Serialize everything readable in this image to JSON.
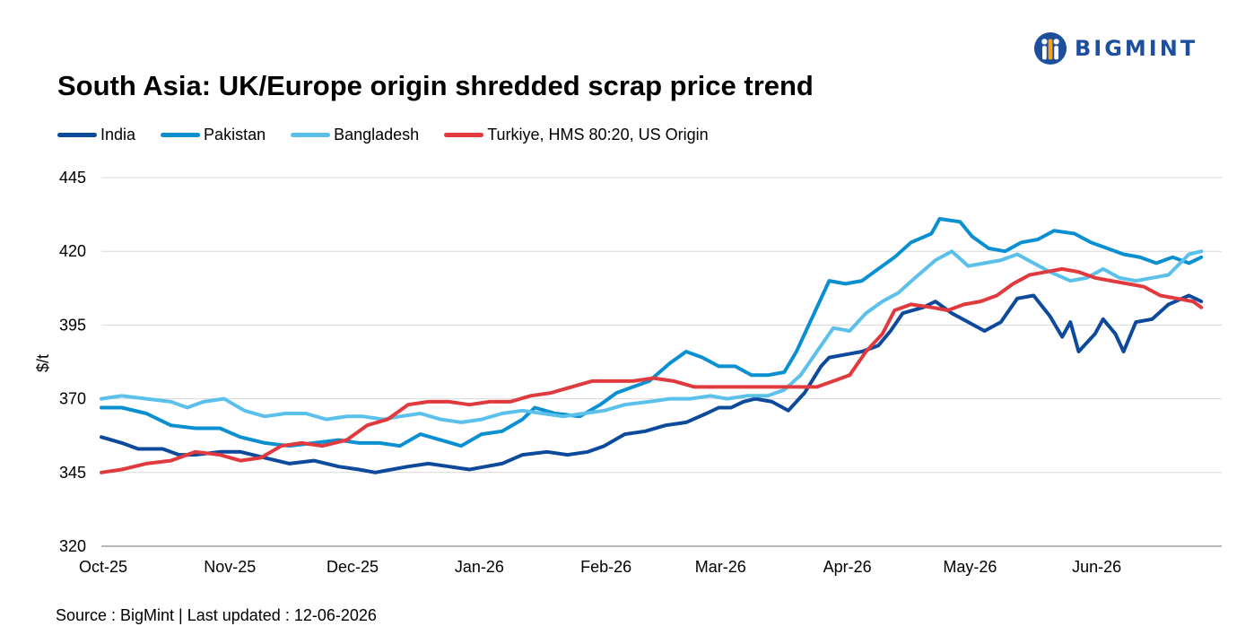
{
  "brand": {
    "name": "BIGMINT",
    "color": "#1e4f9e"
  },
  "footer": {
    "source": "Source : BigMint | Last updated : 12-06-2026"
  },
  "chart_data": {
    "type": "line",
    "title": "South Asia: UK/Europe origin shredded scrap price trend",
    "xlabel": "",
    "ylabel": "$/t",
    "ylim": [
      320,
      445
    ],
    "yticks": [
      "445",
      "420",
      "395",
      "370",
      "345",
      "320"
    ],
    "xticks": [
      "Oct-25",
      "Nov-25",
      "Dec-25",
      "Jan-26",
      "Feb-26",
      "Mar-26",
      "Apr-26",
      "May-26",
      "Jun-26"
    ],
    "grid": "horizontal",
    "legend_position": "top-left",
    "series": [
      {
        "name": "India",
        "color": "#0d4a9b",
        "points": [
          [
            "2025-10-01",
            357
          ],
          [
            "2025-10-06",
            355
          ],
          [
            "2025-10-10",
            353
          ],
          [
            "2025-10-16",
            353
          ],
          [
            "2025-10-20",
            351
          ],
          [
            "2025-10-24",
            351
          ],
          [
            "2025-10-30",
            352
          ],
          [
            "2025-11-04",
            352
          ],
          [
            "2025-11-10",
            350
          ],
          [
            "2025-11-16",
            348
          ],
          [
            "2025-11-22",
            349
          ],
          [
            "2025-11-28",
            347
          ],
          [
            "2025-12-03",
            346
          ],
          [
            "2025-12-07",
            345
          ],
          [
            "2025-12-11",
            346
          ],
          [
            "2025-12-15",
            347
          ],
          [
            "2025-12-20",
            348
          ],
          [
            "2025-12-25",
            347
          ],
          [
            "2025-12-30",
            346
          ],
          [
            "2026-01-03",
            347
          ],
          [
            "2026-01-07",
            348
          ],
          [
            "2026-01-12",
            351
          ],
          [
            "2026-01-18",
            352
          ],
          [
            "2026-01-23",
            351
          ],
          [
            "2026-01-28",
            352
          ],
          [
            "2026-02-01",
            354
          ],
          [
            "2026-02-06",
            358
          ],
          [
            "2026-02-11",
            359
          ],
          [
            "2026-02-16",
            361
          ],
          [
            "2026-02-21",
            362
          ],
          [
            "2026-02-26",
            365
          ],
          [
            "2026-03-01",
            367
          ],
          [
            "2026-03-04",
            367
          ],
          [
            "2026-03-07",
            369
          ],
          [
            "2026-03-10",
            370
          ],
          [
            "2026-03-14",
            369
          ],
          [
            "2026-03-18",
            366
          ],
          [
            "2026-03-22",
            372
          ],
          [
            "2026-03-26",
            381
          ],
          [
            "2026-03-28",
            384
          ],
          [
            "2026-04-01",
            385
          ],
          [
            "2026-04-05",
            386
          ],
          [
            "2026-04-09",
            388
          ],
          [
            "2026-04-12",
            393
          ],
          [
            "2026-04-15",
            399
          ],
          [
            "2026-04-20",
            401
          ],
          [
            "2026-04-23",
            403
          ],
          [
            "2026-04-27",
            399
          ],
          [
            "2026-05-01",
            396
          ],
          [
            "2026-05-05",
            393
          ],
          [
            "2026-05-09",
            396
          ],
          [
            "2026-05-13",
            404
          ],
          [
            "2026-05-17",
            405
          ],
          [
            "2026-05-21",
            398
          ],
          [
            "2026-05-24",
            391
          ],
          [
            "2026-05-26",
            396
          ],
          [
            "2026-05-28",
            386
          ],
          [
            "2026-06-01",
            392
          ],
          [
            "2026-06-03",
            397
          ],
          [
            "2026-06-06",
            392
          ],
          [
            "2026-06-08",
            386
          ],
          [
            "2026-06-11",
            396
          ],
          [
            "2026-06-15",
            397
          ],
          [
            "2026-06-19",
            402
          ],
          [
            "2026-06-24",
            405
          ],
          [
            "2026-06-27",
            403
          ]
        ]
      },
      {
        "name": "Pakistan",
        "color": "#0a90d1",
        "points": [
          [
            "2025-10-01",
            367
          ],
          [
            "2025-10-06",
            367
          ],
          [
            "2025-10-12",
            365
          ],
          [
            "2025-10-18",
            361
          ],
          [
            "2025-10-24",
            360
          ],
          [
            "2025-10-30",
            360
          ],
          [
            "2025-11-04",
            357
          ],
          [
            "2025-11-10",
            355
          ],
          [
            "2025-11-16",
            354
          ],
          [
            "2025-11-22",
            355
          ],
          [
            "2025-11-28",
            356
          ],
          [
            "2025-12-03",
            355
          ],
          [
            "2025-12-08",
            355
          ],
          [
            "2025-12-13",
            354
          ],
          [
            "2025-12-18",
            358
          ],
          [
            "2025-12-23",
            356
          ],
          [
            "2025-12-28",
            354
          ],
          [
            "2026-01-02",
            358
          ],
          [
            "2026-01-07",
            359
          ],
          [
            "2026-01-12",
            363
          ],
          [
            "2026-01-15",
            367
          ],
          [
            "2026-01-20",
            365
          ],
          [
            "2026-01-26",
            364
          ],
          [
            "2026-01-31",
            368
          ],
          [
            "2026-02-04",
            372
          ],
          [
            "2026-02-08",
            374
          ],
          [
            "2026-02-12",
            376
          ],
          [
            "2026-02-17",
            382
          ],
          [
            "2026-02-21",
            386
          ],
          [
            "2026-02-25",
            384
          ],
          [
            "2026-03-01",
            381
          ],
          [
            "2026-03-05",
            381
          ],
          [
            "2026-03-09",
            378
          ],
          [
            "2026-03-13",
            378
          ],
          [
            "2026-03-17",
            379
          ],
          [
            "2026-03-20",
            386
          ],
          [
            "2026-03-24",
            398
          ],
          [
            "2026-03-28",
            410
          ],
          [
            "2026-04-01",
            409
          ],
          [
            "2026-04-05",
            410
          ],
          [
            "2026-04-09",
            414
          ],
          [
            "2026-04-13",
            418
          ],
          [
            "2026-04-17",
            423
          ],
          [
            "2026-04-22",
            426
          ],
          [
            "2026-04-24",
            431
          ],
          [
            "2026-04-29",
            430
          ],
          [
            "2026-05-02",
            425
          ],
          [
            "2026-05-06",
            421
          ],
          [
            "2026-05-10",
            420
          ],
          [
            "2026-05-14",
            423
          ],
          [
            "2026-05-18",
            424
          ],
          [
            "2026-05-22",
            427
          ],
          [
            "2026-05-27",
            426
          ],
          [
            "2026-05-31",
            423
          ],
          [
            "2026-06-04",
            421
          ],
          [
            "2026-06-08",
            419
          ],
          [
            "2026-06-12",
            418
          ],
          [
            "2026-06-16",
            416
          ],
          [
            "2026-06-20",
            418
          ],
          [
            "2026-06-24",
            416
          ],
          [
            "2026-06-27",
            418
          ]
        ]
      },
      {
        "name": "Bangladesh",
        "color": "#5bc0ea",
        "points": [
          [
            "2025-10-01",
            370
          ],
          [
            "2025-10-06",
            371
          ],
          [
            "2025-10-12",
            370
          ],
          [
            "2025-10-18",
            369
          ],
          [
            "2025-10-22",
            367
          ],
          [
            "2025-10-26",
            369
          ],
          [
            "2025-10-31",
            370
          ],
          [
            "2025-11-05",
            366
          ],
          [
            "2025-11-10",
            364
          ],
          [
            "2025-11-15",
            365
          ],
          [
            "2025-11-20",
            365
          ],
          [
            "2025-11-25",
            363
          ],
          [
            "2025-11-30",
            364
          ],
          [
            "2025-12-04",
            364
          ],
          [
            "2025-12-09",
            363
          ],
          [
            "2025-12-13",
            364
          ],
          [
            "2025-12-18",
            365
          ],
          [
            "2025-12-23",
            363
          ],
          [
            "2025-12-28",
            362
          ],
          [
            "2026-01-02",
            363
          ],
          [
            "2026-01-07",
            365
          ],
          [
            "2026-01-12",
            366
          ],
          [
            "2026-01-17",
            365
          ],
          [
            "2026-01-22",
            364
          ],
          [
            "2026-01-27",
            365
          ],
          [
            "2026-02-01",
            366
          ],
          [
            "2026-02-06",
            368
          ],
          [
            "2026-02-12",
            369
          ],
          [
            "2026-02-17",
            370
          ],
          [
            "2026-02-22",
            370
          ],
          [
            "2026-02-27",
            371
          ],
          [
            "2026-03-03",
            370
          ],
          [
            "2026-03-08",
            371
          ],
          [
            "2026-03-13",
            371
          ],
          [
            "2026-03-17",
            373
          ],
          [
            "2026-03-21",
            378
          ],
          [
            "2026-03-25",
            386
          ],
          [
            "2026-03-29",
            394
          ],
          [
            "2026-04-02",
            393
          ],
          [
            "2026-04-06",
            399
          ],
          [
            "2026-04-10",
            403
          ],
          [
            "2026-04-14",
            406
          ],
          [
            "2026-04-18",
            411
          ],
          [
            "2026-04-23",
            417
          ],
          [
            "2026-04-27",
            420
          ],
          [
            "2026-05-01",
            415
          ],
          [
            "2026-05-05",
            416
          ],
          [
            "2026-05-09",
            417
          ],
          [
            "2026-05-13",
            419
          ],
          [
            "2026-05-17",
            416
          ],
          [
            "2026-05-21",
            413
          ],
          [
            "2026-05-26",
            410
          ],
          [
            "2026-05-30",
            411
          ],
          [
            "2026-06-03",
            414
          ],
          [
            "2026-06-07",
            411
          ],
          [
            "2026-06-11",
            410
          ],
          [
            "2026-06-15",
            411
          ],
          [
            "2026-06-19",
            412
          ],
          [
            "2026-06-24",
            419
          ],
          [
            "2026-06-27",
            420
          ]
        ]
      },
      {
        "name": "Turkiye, HMS 80:20, US Origin",
        "color": "#e03a3e",
        "points": [
          [
            "2025-10-01",
            345
          ],
          [
            "2025-10-06",
            346
          ],
          [
            "2025-10-12",
            348
          ],
          [
            "2025-10-18",
            349
          ],
          [
            "2025-10-24",
            352
          ],
          [
            "2025-10-30",
            351
          ],
          [
            "2025-11-04",
            349
          ],
          [
            "2025-11-09",
            350
          ],
          [
            "2025-11-14",
            354
          ],
          [
            "2025-11-19",
            355
          ],
          [
            "2025-11-24",
            354
          ],
          [
            "2025-11-30",
            356
          ],
          [
            "2025-12-05",
            361
          ],
          [
            "2025-12-10",
            363
          ],
          [
            "2025-12-15",
            368
          ],
          [
            "2025-12-20",
            369
          ],
          [
            "2025-12-25",
            369
          ],
          [
            "2025-12-30",
            368
          ],
          [
            "2026-01-04",
            369
          ],
          [
            "2026-01-09",
            369
          ],
          [
            "2026-01-14",
            371
          ],
          [
            "2026-01-19",
            372
          ],
          [
            "2026-01-24",
            374
          ],
          [
            "2026-01-29",
            376
          ],
          [
            "2026-02-03",
            376
          ],
          [
            "2026-02-08",
            376
          ],
          [
            "2026-02-13",
            377
          ],
          [
            "2026-02-18",
            376
          ],
          [
            "2026-02-23",
            374
          ],
          [
            "2026-02-28",
            374
          ],
          [
            "2026-03-05",
            374
          ],
          [
            "2026-03-10",
            374
          ],
          [
            "2026-03-15",
            374
          ],
          [
            "2026-03-20",
            374
          ],
          [
            "2026-03-25",
            374
          ],
          [
            "2026-03-29",
            376
          ],
          [
            "2026-04-02",
            378
          ],
          [
            "2026-04-06",
            386
          ],
          [
            "2026-04-10",
            392
          ],
          [
            "2026-04-13",
            400
          ],
          [
            "2026-04-17",
            402
          ],
          [
            "2026-04-22",
            401
          ],
          [
            "2026-04-26",
            400
          ],
          [
            "2026-04-30",
            402
          ],
          [
            "2026-05-04",
            403
          ],
          [
            "2026-05-08",
            405
          ],
          [
            "2026-05-12",
            409
          ],
          [
            "2026-05-16",
            412
          ],
          [
            "2026-05-20",
            413
          ],
          [
            "2026-05-24",
            414
          ],
          [
            "2026-05-28",
            413
          ],
          [
            "2026-06-01",
            411
          ],
          [
            "2026-06-05",
            410
          ],
          [
            "2026-06-09",
            409
          ],
          [
            "2026-06-13",
            408
          ],
          [
            "2026-06-17",
            405
          ],
          [
            "2026-06-21",
            404
          ],
          [
            "2026-06-25",
            403
          ],
          [
            "2026-06-27",
            401
          ]
        ]
      }
    ]
  }
}
